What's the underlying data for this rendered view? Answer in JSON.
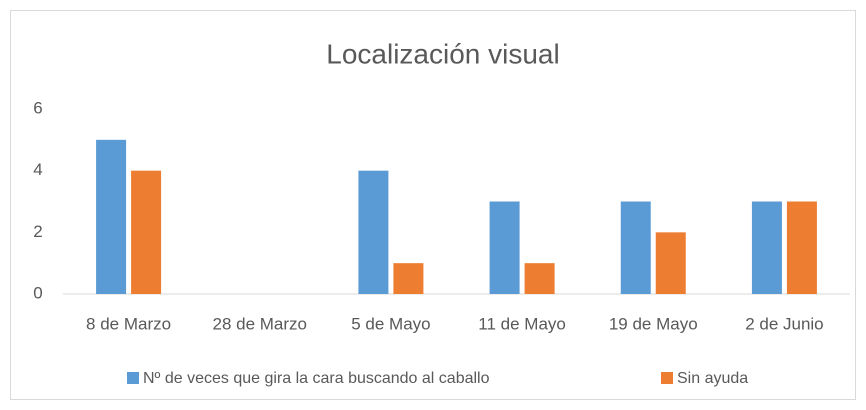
{
  "chart_data": {
    "type": "bar",
    "title": "Localización visual",
    "categories": [
      "8 de Marzo",
      "28 de Marzo",
      "5 de Mayo",
      "11 de Mayo",
      "19 de Mayo",
      "2 de Junio"
    ],
    "series": [
      {
        "name": "Nº de veces que gira la cara buscando al caballo",
        "color": "#5b9bd5",
        "values": [
          5,
          0,
          4,
          3,
          3,
          3
        ]
      },
      {
        "name": "Sin ayuda",
        "color": "#ed7d31",
        "values": [
          4,
          0,
          1,
          1,
          2,
          3
        ]
      }
    ],
    "ylim": [
      0,
      6
    ],
    "yticks": [
      0,
      2,
      4,
      6
    ],
    "grid": false,
    "legend": "bottom"
  }
}
